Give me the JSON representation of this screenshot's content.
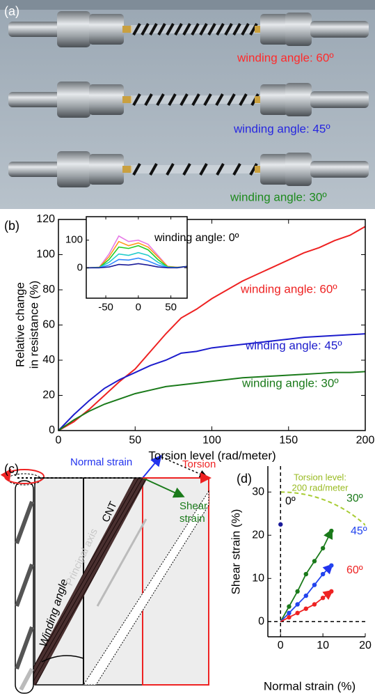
{
  "photo": {
    "label": "(a)",
    "annotations": [
      {
        "text": "winding angle: 60º",
        "color": "#ff2a2a"
      },
      {
        "text": "winding angle: 45º",
        "color": "#2626e0"
      },
      {
        "text": "winding angle: 30º",
        "color": "#1d8a1d"
      }
    ]
  },
  "chart_data": [
    {
      "type": "line",
      "label": "(b)",
      "xlabel": "Torsion level (rad/meter)",
      "ylabel": [
        "Relative change",
        "in resistance (%)"
      ],
      "x": [
        0,
        10,
        20,
        30,
        40,
        50,
        60,
        70,
        80,
        90,
        100,
        110,
        120,
        130,
        140,
        150,
        160,
        170,
        180,
        190,
        200
      ],
      "series": [
        {
          "name": "winding angle: 60º",
          "color": "#ee2222",
          "values": [
            0,
            5,
            12,
            20,
            28,
            35,
            45,
            55,
            64,
            69,
            75,
            80,
            85,
            89,
            93,
            97,
            101,
            104,
            108,
            111,
            116
          ]
        },
        {
          "name": "winding angle: 45º",
          "color": "#1c1ccc",
          "values": [
            0,
            9,
            17,
            24,
            29,
            33,
            37,
            40,
            44,
            45,
            47,
            48,
            49,
            50,
            51,
            52,
            53,
            53.5,
            54,
            54.5,
            55
          ]
        },
        {
          "name": "winding angle: 30º",
          "color": "#1a7a1a",
          "values": [
            0,
            6,
            11,
            15,
            18,
            21,
            23,
            25,
            26,
            27,
            28,
            29,
            30,
            30.5,
            31,
            31.5,
            32,
            32.5,
            33,
            33,
            33.5
          ]
        }
      ],
      "xlim": [
        0,
        200
      ],
      "ylim": [
        0,
        120
      ],
      "xticks": [
        0,
        50,
        100,
        150,
        200
      ],
      "yticks": [
        0,
        20,
        40,
        60,
        80,
        100,
        120
      ]
    },
    {
      "type": "line",
      "annotation": "winding angle: 0º",
      "x": [
        -80,
        -60,
        -45,
        -30,
        -15,
        0,
        15,
        30,
        45,
        60,
        75
      ],
      "series": [
        {
          "color": "#e67ae6",
          "values": [
            0,
            2,
            50,
            115,
            95,
            100,
            85,
            45,
            5,
            2,
            5
          ]
        },
        {
          "color": "#ff9a1a",
          "values": [
            0,
            2,
            40,
            95,
            80,
            90,
            75,
            40,
            5,
            2,
            5
          ]
        },
        {
          "color": "#22cc22",
          "values": [
            0,
            1,
            30,
            75,
            70,
            80,
            65,
            30,
            3,
            1,
            5
          ]
        },
        {
          "color": "#22cccc",
          "values": [
            0,
            1,
            20,
            50,
            45,
            55,
            45,
            20,
            2,
            1,
            5
          ]
        },
        {
          "color": "#3388ff",
          "values": [
            0,
            0,
            10,
            30,
            28,
            35,
            25,
            10,
            1,
            0,
            5
          ]
        },
        {
          "color": "#1a1a99",
          "values": [
            0,
            0,
            3,
            12,
            10,
            15,
            10,
            3,
            0,
            0,
            5
          ]
        }
      ],
      "xlim": [
        -80,
        75
      ],
      "ylim": [
        -110,
        185
      ],
      "xticks": [
        -50,
        0,
        50
      ],
      "yticks": [
        0,
        100
      ]
    },
    {
      "type": "scatter",
      "label": "(d)",
      "xlabel": "Normal strain (%)",
      "ylabel": "Shear strain (%)",
      "annotations": [
        "Torsion level:",
        "200 rad/meter"
      ],
      "series": [
        {
          "name": "0º",
          "color": "#1a1a99",
          "x": [
            0
          ],
          "y": [
            22.5
          ]
        },
        {
          "name": "30º",
          "color": "#1a7a1a",
          "x": [
            2,
            4,
            6,
            8,
            10,
            12
          ],
          "y": [
            3.5,
            7,
            11,
            14,
            17,
            21
          ]
        },
        {
          "name": "45º",
          "color": "#2244ee",
          "x": [
            2,
            4,
            6,
            8,
            10,
            12
          ],
          "y": [
            2,
            4,
            6,
            8.5,
            11,
            13
          ]
        },
        {
          "name": "60º",
          "color": "#ee2222",
          "x": [
            2,
            4,
            6,
            8,
            10,
            12
          ],
          "y": [
            1,
            2,
            3,
            4,
            5.5,
            7
          ]
        }
      ],
      "xlim": [
        -3,
        20
      ],
      "ylim": [
        -3.5,
        36
      ],
      "xticks": [
        0,
        10,
        20
      ],
      "yticks": [
        0,
        10,
        20,
        30
      ]
    }
  ],
  "diagram": {
    "label": "(c)",
    "normal_strain": "Normal strain",
    "torsion": "Torsion",
    "shear_strain": [
      "Shear",
      "strain"
    ],
    "winding_angle": "Winding angle",
    "principal_axis": "Principal axis",
    "cnt": "CNT"
  }
}
